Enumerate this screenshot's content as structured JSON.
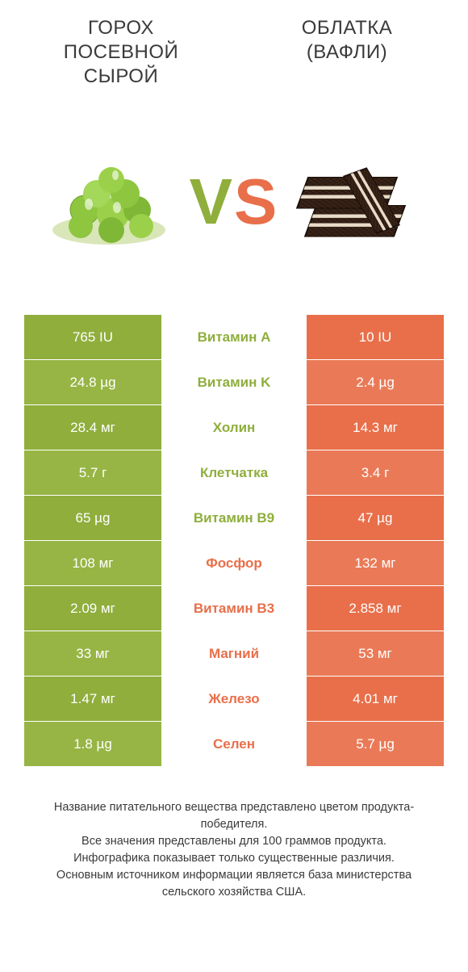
{
  "titles": {
    "left": "ГОРОХ ПОСЕВНОЙ СЫРОЙ",
    "right": "ОБЛАТКА (ВАФЛИ)"
  },
  "vs": {
    "v": "V",
    "s": "S"
  },
  "colors": {
    "left_bg": "#8fae3c",
    "right_bg": "#e86f4a",
    "left_text": "#8fae3c",
    "right_text": "#e86f4a",
    "row_alt_darken": 0
  },
  "rows": [
    {
      "left": "765 IU",
      "mid": "Витамин A",
      "right": "10 IU",
      "winner": "left"
    },
    {
      "left": "24.8 µg",
      "mid": "Витамин K",
      "right": "2.4 µg",
      "winner": "left"
    },
    {
      "left": "28.4 мг",
      "mid": "Холин",
      "right": "14.3 мг",
      "winner": "left"
    },
    {
      "left": "5.7 г",
      "mid": "Клетчатка",
      "right": "3.4 г",
      "winner": "left"
    },
    {
      "left": "65 µg",
      "mid": "Витамин B9",
      "right": "47 µg",
      "winner": "left"
    },
    {
      "left": "108 мг",
      "mid": "Фосфор",
      "right": "132 мг",
      "winner": "right"
    },
    {
      "left": "2.09 мг",
      "mid": "Витамин B3",
      "right": "2.858 мг",
      "winner": "right"
    },
    {
      "left": "33 мг",
      "mid": "Магний",
      "right": "53 мг",
      "winner": "right"
    },
    {
      "left": "1.47 мг",
      "mid": "Железо",
      "right": "4.01 мг",
      "winner": "right"
    },
    {
      "left": "1.8 µg",
      "mid": "Селен",
      "right": "5.7 µg",
      "winner": "right"
    }
  ],
  "left_shades": [
    "#8fae3c",
    "#97b544"
  ],
  "right_shades": [
    "#e86f4a",
    "#ea7a57"
  ],
  "footer": {
    "l1": "Название питательного вещества представлено цветом продукта-победителя.",
    "l2": "Все значения представлены для 100 граммов продукта.",
    "l3": "Инфографика показывает только существенные различия.",
    "l4": "Основным источником информации является база министерства сельского хозяйства США."
  }
}
